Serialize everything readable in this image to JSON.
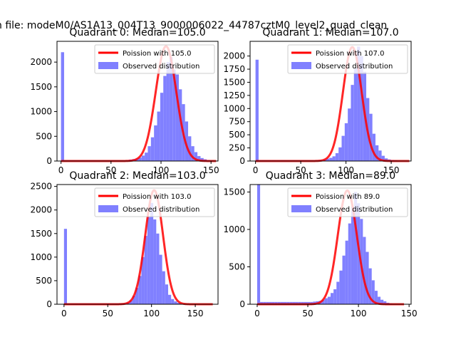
{
  "suptitle": "n file: modeM0/AS1A13_004T13_9000006022_44787cztM0_level2_quad_clean",
  "colors": {
    "hist": "#8080ff",
    "fit": "#ff0000",
    "axis": "#000000",
    "background": "#ffffff"
  },
  "chart_data": [
    {
      "type": "bar",
      "title": "Quadrant 0: Median=105.0",
      "xlim": [
        -4,
        157
      ],
      "ylim": [
        0,
        2420
      ],
      "xticks": [
        0,
        50,
        100,
        150
      ],
      "yticks": [
        0,
        500,
        1000,
        1500,
        2000
      ],
      "legend": {
        "placement": "top-right",
        "entries": [
          "Poission with 105.0",
          "Observed distribution"
        ]
      },
      "bin_width": 3.1,
      "bin_start": 0,
      "hist_values": [
        2200,
        15,
        15,
        15,
        15,
        15,
        15,
        15,
        15,
        15,
        15,
        15,
        15,
        15,
        15,
        15,
        15,
        15,
        15,
        15,
        15,
        15,
        30,
        40,
        50,
        70,
        110,
        170,
        300,
        480,
        720,
        1000,
        1380,
        1720,
        2000,
        2100,
        1850,
        1750,
        1450,
        1150,
        800,
        500,
        300,
        180,
        100,
        60,
        35,
        20,
        12,
        8
      ],
      "fit": {
        "label": "Poission with 105.0",
        "mu": 105,
        "peak": 2320,
        "sigma": 10.25
      }
    },
    {
      "type": "bar",
      "title": "Quadrant 1: Median=107.0",
      "xlim": [
        -6,
        172
      ],
      "ylim": [
        0,
        2280
      ],
      "xticks": [
        0,
        50,
        100,
        150
      ],
      "yticks": [
        0,
        250,
        500,
        750,
        1000,
        1250,
        1500,
        1750,
        2000
      ],
      "legend": {
        "placement": "top-right",
        "entries": [
          "Poission with 107.0",
          "Observed distribution"
        ]
      },
      "bin_width": 3.4,
      "bin_start": 0,
      "hist_values": [
        1930,
        15,
        15,
        15,
        15,
        15,
        15,
        15,
        15,
        15,
        15,
        15,
        15,
        15,
        15,
        15,
        15,
        15,
        15,
        15,
        15,
        15,
        30,
        45,
        60,
        90,
        150,
        260,
        480,
        720,
        1000,
        1450,
        1760,
        2180,
        2000,
        1700,
        1200,
        900,
        520,
        300,
        200,
        100,
        50,
        30,
        20,
        12,
        8,
        5,
        3,
        2
      ],
      "fit": {
        "label": "Poission with 107.0",
        "mu": 107,
        "peak": 2170,
        "sigma": 10.34
      }
    },
    {
      "type": "bar",
      "title": "Quadrant 2: Median=103.0",
      "xlim": [
        -8,
        176
      ],
      "ylim": [
        0,
        2540
      ],
      "xticks": [
        0,
        50,
        100,
        150
      ],
      "yticks": [
        0,
        500,
        1000,
        1500,
        2000,
        2500
      ],
      "legend": {
        "placement": "top-right",
        "entries": [
          "Poission with 103.0",
          "Observed distribution"
        ]
      },
      "bin_width": 3.4,
      "bin_start": 0,
      "hist_values": [
        1600,
        15,
        15,
        15,
        15,
        15,
        15,
        15,
        15,
        15,
        15,
        15,
        15,
        15,
        15,
        15,
        15,
        15,
        15,
        15,
        20,
        40,
        80,
        180,
        350,
        600,
        1000,
        1450,
        1850,
        2150,
        1800,
        1500,
        1050,
        700,
        420,
        200,
        110,
        60,
        30,
        15,
        8,
        5,
        3,
        2,
        1,
        1,
        1,
        1,
        0,
        0
      ],
      "fit": {
        "label": "Poission with 103.0",
        "mu": 103,
        "peak": 2420,
        "sigma": 10.15
      }
    },
    {
      "type": "bar",
      "title": "Quadrant 3: Median=89.0",
      "xlim": [
        -7,
        152
      ],
      "ylim": [
        0,
        1600
      ],
      "xticks": [
        0,
        50,
        100,
        150
      ],
      "yticks": [
        0,
        500,
        1000,
        1500
      ],
      "legend": {
        "placement": "top-right",
        "entries": [
          "Poission with 89.0",
          "Observed distribution"
        ]
      },
      "bin_width": 2.9,
      "bin_start": 0,
      "hist_values": [
        1600,
        30,
        30,
        30,
        30,
        30,
        30,
        30,
        30,
        30,
        30,
        30,
        30,
        30,
        30,
        30,
        30,
        30,
        30,
        35,
        40,
        45,
        60,
        80,
        100,
        150,
        200,
        300,
        450,
        650,
        850,
        1080,
        1300,
        1500,
        1350,
        1140,
        900,
        700,
        480,
        320,
        180,
        100,
        60,
        40,
        20,
        10,
        5,
        3,
        2,
        1
      ],
      "fit": {
        "label": "Poission with 89.0",
        "mu": 89,
        "peak": 1520,
        "sigma": 9.43
      }
    }
  ]
}
